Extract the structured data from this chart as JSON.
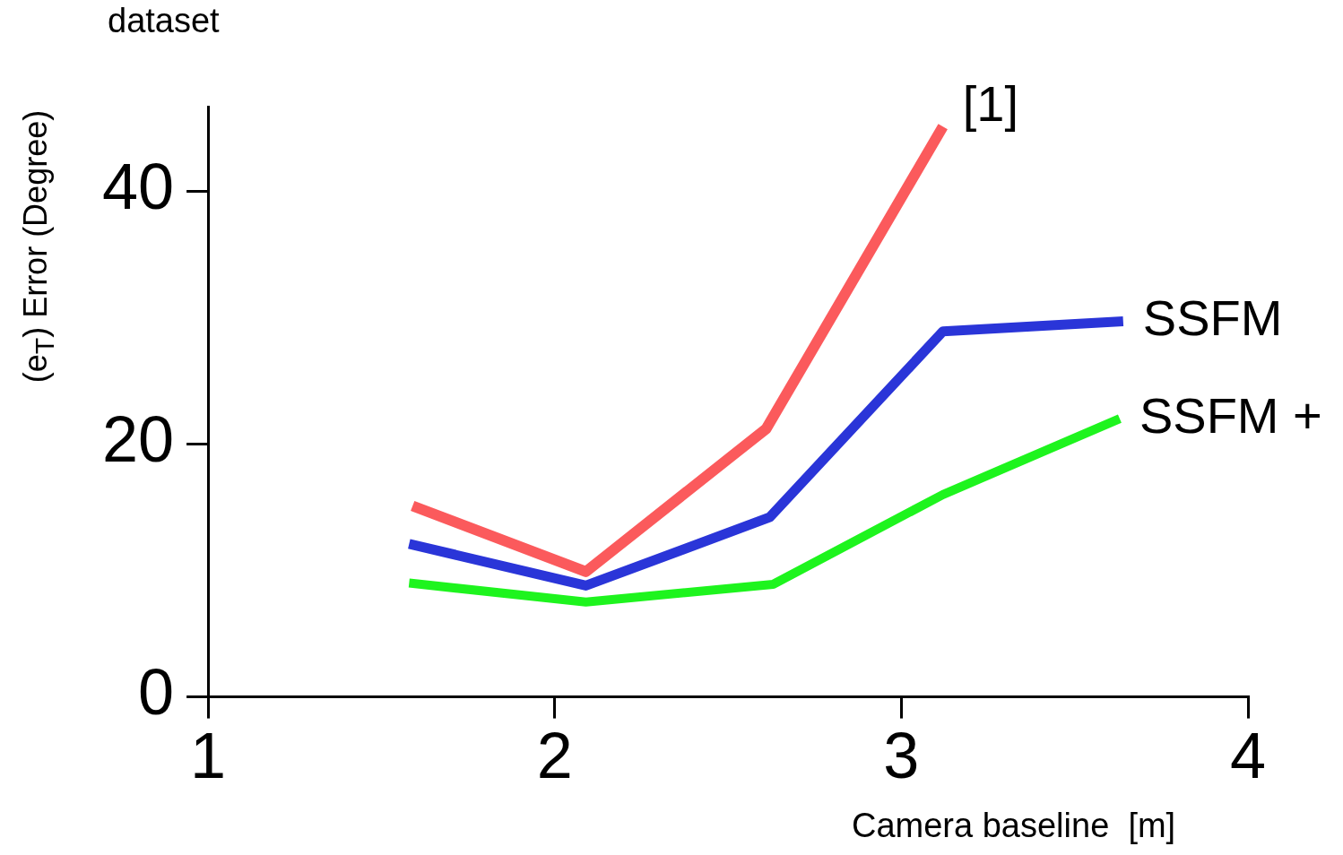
{
  "chart_data": {
    "type": "line",
    "title": "dataset",
    "xlabel": "Camera baseline  [m]",
    "ylabel": "(e$_{T}$) Error (Degree)",
    "xlim": [
      1,
      4
    ],
    "xticks": [
      1,
      2,
      3,
      4
    ],
    "ylim": [
      0,
      46.67
    ],
    "yticks": [
      0,
      20,
      40
    ],
    "grid": false,
    "legend": false,
    "marker": "none",
    "line_style": "solid",
    "series": [
      {
        "name": "[1]",
        "color": "#fb5a5c",
        "x": [
          1.59,
          2.09,
          2.61,
          3.12
        ],
        "values": [
          15.1,
          9.9,
          21.2,
          45.1
        ]
      },
      {
        "name": "SSFM",
        "color": "#2a35d8",
        "x": [
          1.58,
          2.09,
          2.62,
          3.12,
          3.64
        ],
        "values": [
          12.1,
          8.8,
          14.2,
          28.9,
          29.7
        ]
      },
      {
        "name": "SSFM +",
        "color": "#1ef41e",
        "x": [
          1.58,
          2.09,
          2.63,
          3.12,
          3.63
        ],
        "values": [
          9.0,
          7.5,
          8.9,
          16.0,
          22.0
        ]
      }
    ]
  }
}
